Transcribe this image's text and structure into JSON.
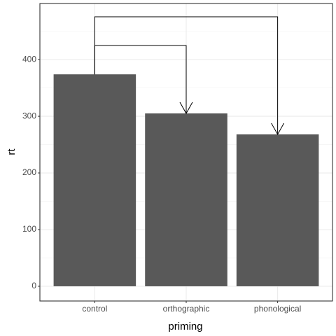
{
  "chart_data": {
    "type": "bar",
    "x_label": "priming",
    "y_label": "rt",
    "categories": [
      "control",
      "orthographic",
      "phonological"
    ],
    "values": [
      374,
      305,
      268
    ],
    "color": "#595959",
    "ylim": [
      -26,
      499
    ],
    "yticks": [
      0,
      100,
      200,
      300,
      400
    ],
    "minor_yticks": [
      50,
      150,
      250,
      350,
      450
    ],
    "grid": true
  }
}
